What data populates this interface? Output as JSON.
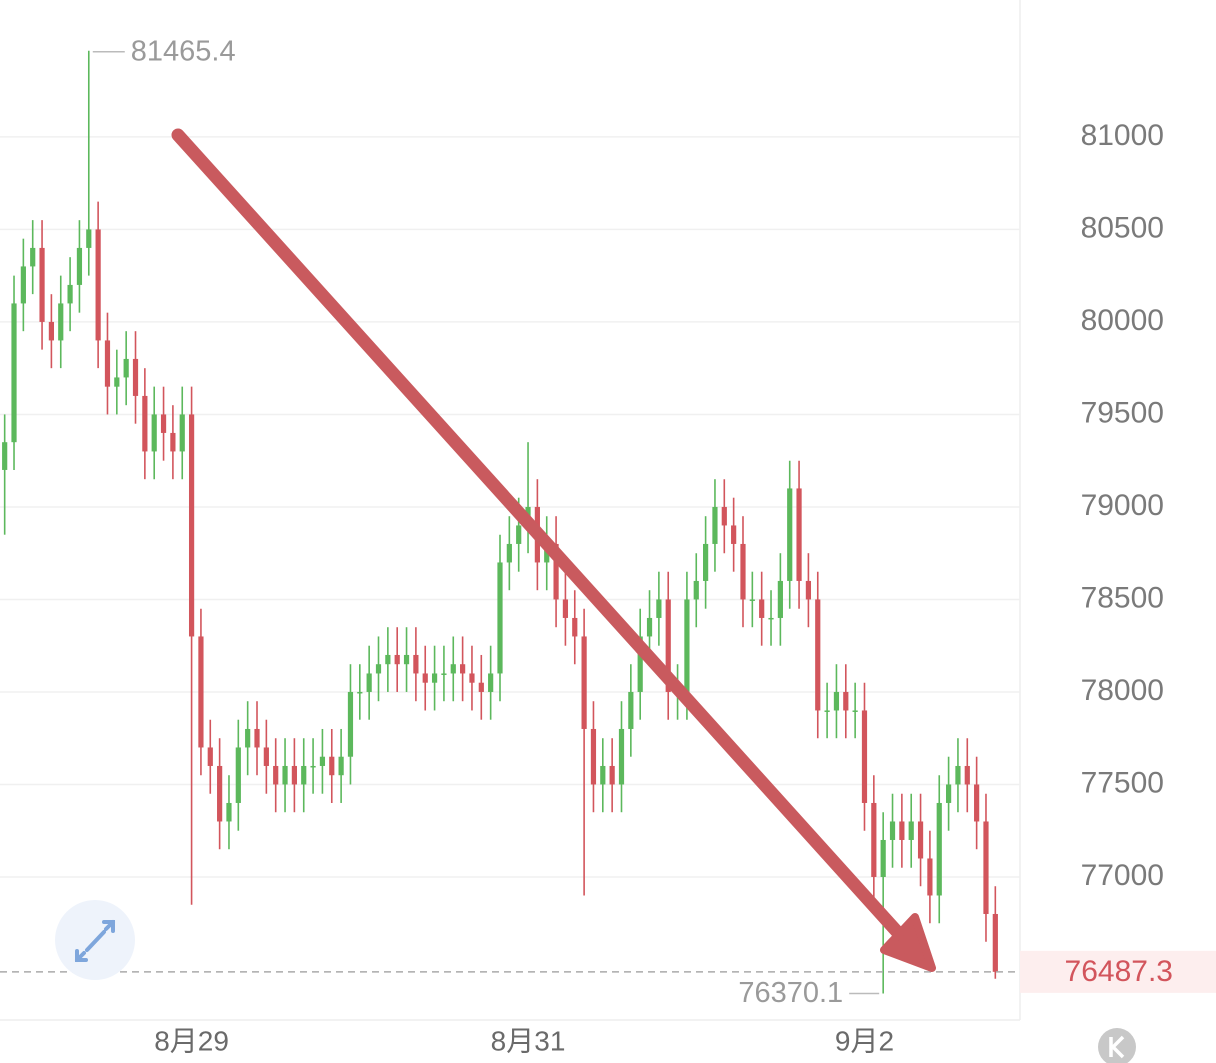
{
  "chart_data": {
    "type": "candlestick",
    "categories": [
      null,
      null,
      null,
      null,
      null,
      null,
      null,
      null,
      null,
      null,
      null,
      null,
      null,
      null,
      null,
      null,
      null,
      null,
      null,
      null,
      "8月29",
      null,
      null,
      null,
      null,
      null,
      null,
      null,
      null,
      null,
      null,
      null,
      null,
      null,
      null,
      null,
      null,
      null,
      null,
      null,
      null,
      null,
      null,
      null,
      null,
      null,
      null,
      null,
      null,
      null,
      null,
      null,
      null,
      null,
      null,
      null,
      "8月31",
      null,
      null,
      null,
      null,
      null,
      null,
      null,
      null,
      null,
      null,
      null,
      null,
      null,
      null,
      null,
      null,
      null,
      null,
      null,
      null,
      null,
      null,
      null,
      null,
      null,
      null,
      null,
      null,
      null,
      null,
      null,
      null,
      null,
      null,
      null,
      "9月2",
      null,
      null,
      null,
      null,
      null,
      null,
      null,
      null,
      null,
      null,
      null,
      null,
      null,
      null
    ],
    "series": [
      {
        "open": [
          79200,
          79350,
          80100,
          80300,
          80400,
          80000,
          79900,
          80100,
          80200,
          80400,
          80500,
          79900,
          79650,
          79700,
          79800,
          79600,
          79300,
          79500,
          79400,
          79300,
          79500,
          78300,
          77700,
          77600,
          77300,
          77400,
          77700,
          77800,
          77700,
          77600,
          77500,
          77600,
          77500,
          77600,
          77600,
          77650,
          77550,
          77650,
          78000,
          78000,
          78100,
          78150,
          78200,
          78150,
          78200,
          78100,
          78050,
          78100,
          78100,
          78150,
          78100,
          78050,
          78000,
          78100,
          78700,
          78800,
          78900,
          79000,
          78700,
          78800,
          78500,
          78400,
          78300,
          77800,
          77500,
          77600,
          77500,
          77800,
          78000,
          78300,
          78400,
          78500,
          78000,
          78000,
          78500,
          78600,
          78800,
          79000,
          78900,
          78800,
          78500,
          78500,
          78400,
          78400,
          78600,
          79100,
          78600,
          78500,
          77900,
          77900,
          78000,
          77900,
          77900,
          77400,
          77000,
          77200,
          77300,
          77200,
          77300,
          77100,
          76900,
          77400,
          77500,
          77600,
          77500,
          77300,
          76800
        ],
        "high": [
          79500,
          80250,
          80450,
          80550,
          80550,
          80150,
          80250,
          80350,
          80550,
          81465.4,
          80650,
          80050,
          79850,
          79950,
          79950,
          79750,
          79650,
          79650,
          79550,
          79650,
          79650,
          78450,
          77850,
          77750,
          77550,
          77850,
          77950,
          77950,
          77850,
          77750,
          77750,
          77750,
          77750,
          77750,
          77800,
          77800,
          77800,
          78150,
          78150,
          78250,
          78300,
          78350,
          78350,
          78350,
          78350,
          78250,
          78250,
          78250,
          78300,
          78300,
          78250,
          78200,
          78250,
          78850,
          78950,
          79050,
          79350,
          79150,
          78950,
          78950,
          78650,
          78550,
          78450,
          77950,
          77750,
          77750,
          77950,
          78150,
          78450,
          78550,
          78650,
          78650,
          78150,
          78650,
          78750,
          78950,
          79150,
          79150,
          79050,
          78950,
          78650,
          78650,
          78550,
          78750,
          79250,
          79250,
          78750,
          78650,
          78050,
          78150,
          78150,
          78050,
          78050,
          77550,
          77350,
          77450,
          77450,
          77450,
          77450,
          77250,
          77550,
          77650,
          77750,
          77750,
          77650,
          77450,
          76950
        ],
        "low": [
          78850,
          79200,
          79950,
          80150,
          79850,
          79750,
          79750,
          79950,
          80050,
          80250,
          79750,
          79500,
          79500,
          79550,
          79450,
          79150,
          79150,
          79250,
          79150,
          79150,
          76850,
          77550,
          77450,
          77150,
          77150,
          77250,
          77550,
          77550,
          77450,
          77350,
          77350,
          77350,
          77350,
          77450,
          77450,
          77400,
          77400,
          77500,
          77850,
          77850,
          77950,
          78000,
          78000,
          78000,
          77950,
          77900,
          77900,
          77950,
          77950,
          77950,
          77900,
          77850,
          77850,
          77950,
          78550,
          78650,
          78750,
          78550,
          78550,
          78350,
          78250,
          78150,
          76900,
          77350,
          77350,
          77350,
          77350,
          77650,
          77850,
          78150,
          78250,
          77850,
          77850,
          77850,
          78350,
          78450,
          78650,
          78750,
          78650,
          78350,
          78350,
          78250,
          78250,
          78250,
          78450,
          78450,
          78350,
          77750,
          77750,
          77750,
          77750,
          77750,
          77250,
          76850,
          76370.1,
          77050,
          77050,
          77050,
          76950,
          76750,
          76750,
          77250,
          77350,
          77350,
          77150,
          76650,
          76450
        ],
        "close": [
          79350,
          80100,
          80300,
          80400,
          80000,
          79900,
          80100,
          80200,
          80400,
          80500,
          79900,
          79650,
          79700,
          79800,
          79600,
          79300,
          79500,
          79400,
          79300,
          79500,
          78300,
          77700,
          77600,
          77300,
          77400,
          77700,
          77800,
          77700,
          77600,
          77500,
          77600,
          77500,
          77600,
          77600,
          77650,
          77550,
          77650,
          78000,
          78000,
          78100,
          78150,
          78200,
          78150,
          78200,
          78100,
          78050,
          78100,
          78100,
          78150,
          78100,
          78050,
          78000,
          78100,
          78700,
          78800,
          78900,
          79000,
          78700,
          78800,
          78500,
          78400,
          78300,
          77800,
          77500,
          77600,
          77500,
          77800,
          78000,
          78300,
          78400,
          78500,
          78000,
          78000,
          78500,
          78600,
          78800,
          79000,
          78900,
          78800,
          78500,
          78500,
          78400,
          78400,
          78600,
          79100,
          78600,
          78500,
          77900,
          77900,
          78000,
          77900,
          77900,
          77400,
          77000,
          77200,
          77300,
          77200,
          77300,
          77100,
          76900,
          77400,
          77500,
          77600,
          77500,
          77300,
          76800,
          76487.3
        ]
      }
    ],
    "up_color": "#5cb85c",
    "down_color": "#d2555c",
    "ylim": [
      76227,
      81740
    ],
    "yticks": [
      77000,
      77500,
      78000,
      78500,
      79000,
      79500,
      80000,
      80500,
      81000
    ],
    "grid": true
  }
}
